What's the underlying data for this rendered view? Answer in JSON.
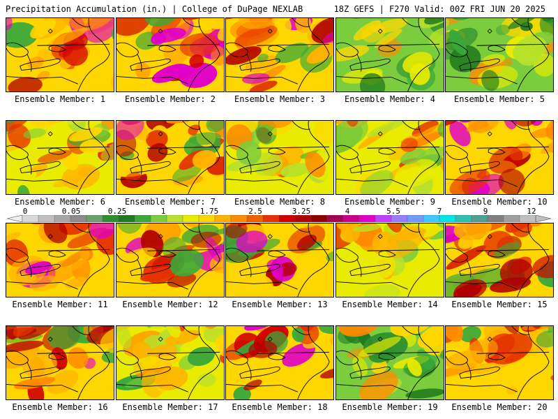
{
  "header": {
    "title_left": "Precipitation Accumulation (in.) | College of DuPage NEXLAB",
    "title_right": "18Z GEFS | F270 Valid: 00Z FRI JUN 20 2025"
  },
  "panels": [
    {
      "label": "Ensemble Member: 1",
      "dominant": "heavy"
    },
    {
      "label": "Ensemble Member: 2",
      "dominant": "heavy"
    },
    {
      "label": "Ensemble Member: 3",
      "dominant": "heavy"
    },
    {
      "label": "Ensemble Member: 4",
      "dominant": "light"
    },
    {
      "label": "Ensemble Member: 5",
      "dominant": "light"
    },
    {
      "label": "Ensemble Member: 6",
      "dominant": "moderate"
    },
    {
      "label": "Ensemble Member: 7",
      "dominant": "heavy"
    },
    {
      "label": "Ensemble Member: 8",
      "dominant": "moderate"
    },
    {
      "label": "Ensemble Member: 9",
      "dominant": "moderate"
    },
    {
      "label": "Ensemble Member: 10",
      "dominant": "heavy"
    },
    {
      "label": "Ensemble Member: 11",
      "dominant": "heavy"
    },
    {
      "label": "Ensemble Member: 12",
      "dominant": "heavy"
    },
    {
      "label": "Ensemble Member: 13",
      "dominant": "heavy"
    },
    {
      "label": "Ensemble Member: 14",
      "dominant": "moderate"
    },
    {
      "label": "Ensemble Member: 15",
      "dominant": "heavy"
    },
    {
      "label": "Ensemble Member: 16",
      "dominant": "heavy"
    },
    {
      "label": "Ensemble Member: 17",
      "dominant": "moderate"
    },
    {
      "label": "Ensemble Member: 18",
      "dominant": "heavy"
    },
    {
      "label": "Ensemble Member: 19",
      "dominant": "light"
    },
    {
      "label": "Ensemble Member: 20",
      "dominant": "heavy"
    }
  ],
  "colorbar": {
    "tick_labels": [
      "0",
      "0.05",
      "0.25",
      "1",
      "1.75",
      "2.5",
      "3.25",
      "4",
      "5.5",
      "7",
      "9",
      "12"
    ],
    "colors": [
      "#d9d9d9",
      "#bfbfbf",
      "#a6a6a6",
      "#8c8c8c",
      "#6e9f6e",
      "#2f8f2f",
      "#1f7a1f",
      "#3aa83a",
      "#7ccd3e",
      "#b8e02a",
      "#e9ec00",
      "#ffd700",
      "#ffb300",
      "#ff8c00",
      "#f35f00",
      "#e53200",
      "#d10000",
      "#b00000",
      "#900000",
      "#a30055",
      "#cc0088",
      "#e000c8",
      "#c040ff",
      "#9a7cff",
      "#6f9bff",
      "#3fc8ff",
      "#00e5e5",
      "#2fc0b0",
      "#4fa090",
      "#7f7f7f",
      "#9f9f9f",
      "#c0c0c0"
    ]
  }
}
